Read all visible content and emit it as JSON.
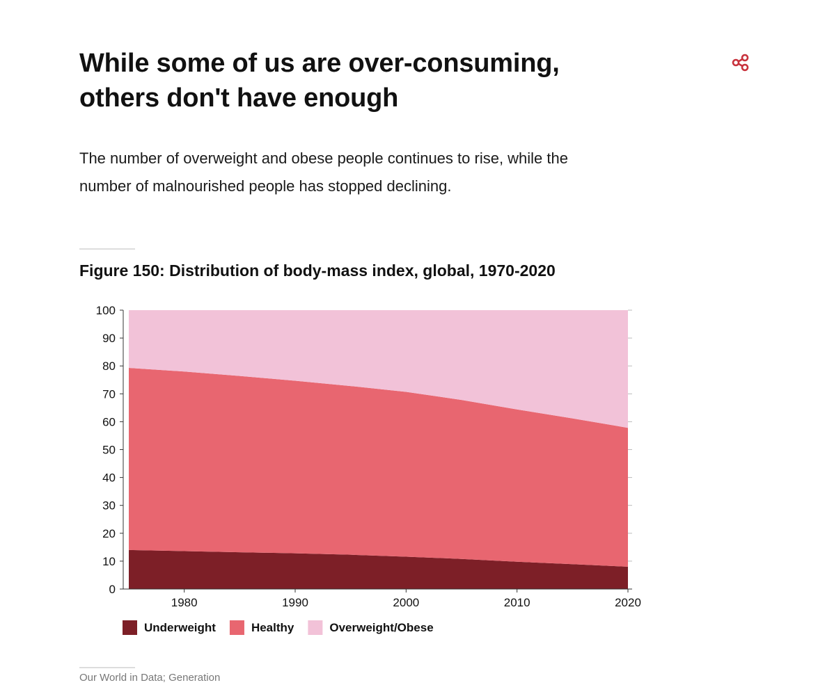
{
  "article": {
    "heading_line1": "While some of us are over-consuming,",
    "heading_line2": "others don't have enough",
    "subtitle_line1": "The number of overweight and obese people continues to rise, while the",
    "subtitle_line2": "number of malnourished people has stopped declining.",
    "share_icon": "share-icon",
    "accent_color": "#c8323c",
    "source_text": "Our World in Data; Generation"
  },
  "chart_data": {
    "type": "area",
    "stacked": true,
    "title": "Figure 150: Distribution of body-mass index, global, 1970-2020",
    "xlabel": "",
    "ylabel": "",
    "x": [
      1975,
      1980,
      1985,
      1990,
      1995,
      2000,
      2005,
      2010,
      2015,
      2020
    ],
    "xlim": [
      1975,
      2020
    ],
    "ylim": [
      0,
      100
    ],
    "x_ticks": [
      1980,
      1990,
      2000,
      2010,
      2020
    ],
    "y_ticks": [
      0,
      10,
      20,
      30,
      40,
      50,
      60,
      70,
      80,
      90,
      100
    ],
    "series": [
      {
        "name": "Underweight",
        "color": "#7d1f27",
        "values": [
          14.0,
          13.6,
          13.2,
          12.8,
          12.3,
          11.6,
          10.8,
          9.8,
          8.9,
          8.0
        ]
      },
      {
        "name": "Healthy",
        "color": "#e86670",
        "values": [
          65.3,
          64.4,
          63.2,
          61.9,
          60.5,
          59.1,
          57.0,
          54.6,
          52.3,
          49.8
        ]
      },
      {
        "name": "Overweight/Obese",
        "color": "#f2c2d8",
        "values": [
          20.7,
          22.0,
          23.6,
          25.3,
          27.2,
          29.3,
          32.2,
          35.6,
          38.8,
          42.2
        ]
      }
    ],
    "legend": "bottom-left",
    "grid": false
  }
}
